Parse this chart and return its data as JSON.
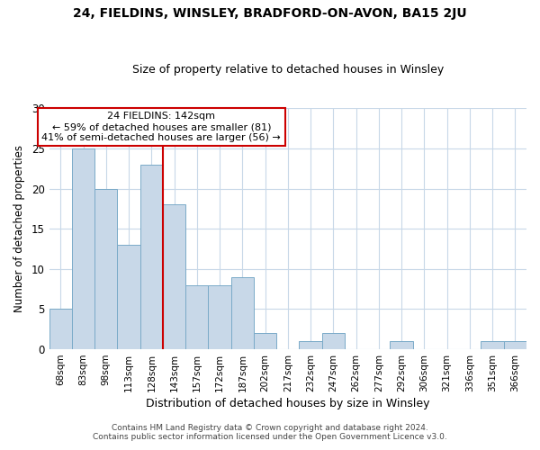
{
  "title": "24, FIELDINS, WINSLEY, BRADFORD-ON-AVON, BA15 2JU",
  "subtitle": "Size of property relative to detached houses in Winsley",
  "xlabel": "Distribution of detached houses by size in Winsley",
  "ylabel": "Number of detached properties",
  "footer_lines": [
    "Contains HM Land Registry data © Crown copyright and database right 2024.",
    "Contains public sector information licensed under the Open Government Licence v3.0."
  ],
  "bin_labels": [
    "68sqm",
    "83sqm",
    "98sqm",
    "113sqm",
    "128sqm",
    "143sqm",
    "157sqm",
    "172sqm",
    "187sqm",
    "202sqm",
    "217sqm",
    "232sqm",
    "247sqm",
    "262sqm",
    "277sqm",
    "292sqm",
    "306sqm",
    "321sqm",
    "336sqm",
    "351sqm",
    "366sqm"
  ],
  "bar_values": [
    5,
    25,
    20,
    13,
    23,
    18,
    8,
    8,
    9,
    2,
    0,
    1,
    2,
    0,
    0,
    1,
    0,
    0,
    0,
    1,
    1
  ],
  "bar_color": "#c8d8e8",
  "bar_edge_color": "#7aaac8",
  "vline_index": 5,
  "vline_color": "#cc0000",
  "annotation_line1": "24 FIELDINS: 142sqm",
  "annotation_line2": "← 59% of detached houses are smaller (81)",
  "annotation_line3": "41% of semi-detached houses are larger (56) →",
  "ylim": [
    0,
    30
  ],
  "yticks": [
    0,
    5,
    10,
    15,
    20,
    25,
    30
  ],
  "background_color": "#ffffff",
  "grid_color": "#c8d8e8"
}
